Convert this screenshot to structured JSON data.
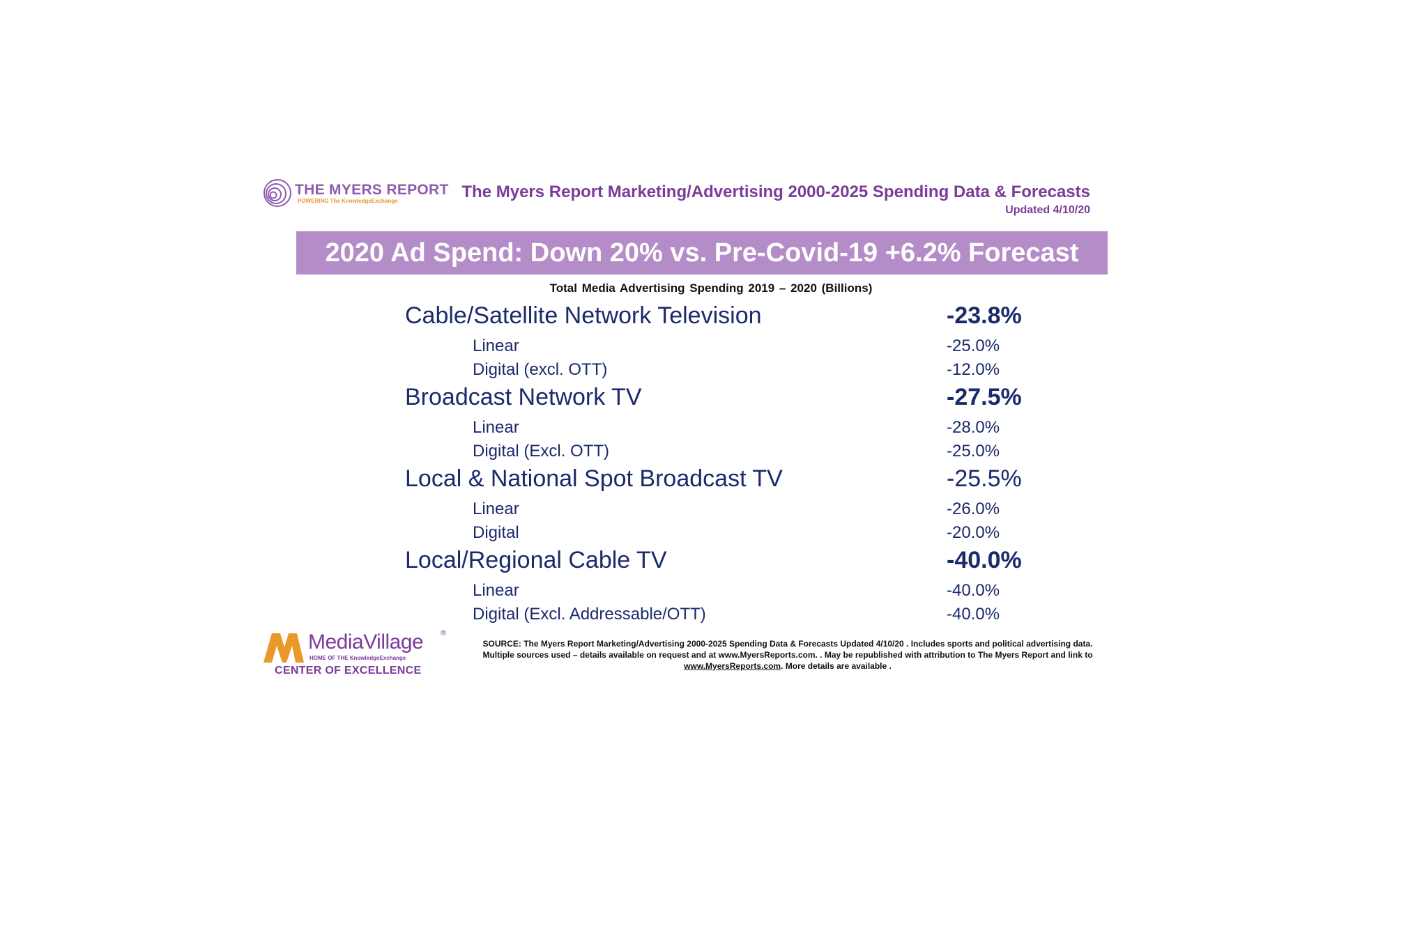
{
  "header": {
    "logo_name": "THE MYERS REPORT",
    "logo_tagline": "POWERING The KnowledgeExchange",
    "title": "The Myers Report Marketing/Advertising 2000-2025 Spending Data & Forecasts",
    "updated": "Updated 4/10/20"
  },
  "banner": "2020 Ad Spend: Down 20% vs. Pre-Covid-19 +6.2% Forecast",
  "table_subtitle": "Total Media Advertising Spending 2019 – 2020 (Billions)",
  "rows": [
    {
      "label": "Cable/Satellite Network Television",
      "value": "-23.8%"
    },
    {
      "label": "Linear",
      "value": "-25.0%"
    },
    {
      "label": "Digital (excl. OTT)",
      "value": "-12.0%"
    },
    {
      "label": "Broadcast Network TV",
      "value": "-27.5%"
    },
    {
      "label": "Linear",
      "value": "-28.0%"
    },
    {
      "label": "Digital (Excl. OTT)",
      "value": "-25.0%"
    },
    {
      "label": "Local & National Spot Broadcast TV",
      "value": "-25.5%"
    },
    {
      "label": "Linear",
      "value": "-26.0%"
    },
    {
      "label": "Digital",
      "value": "-20.0%"
    },
    {
      "label": "Local/Regional Cable TV",
      "value": "-40.0%"
    },
    {
      "label": "Linear",
      "value": "-40.0%"
    },
    {
      "label": "Digital (Excl. Addressable/OTT)",
      "value": "-40.0%"
    }
  ],
  "footer": {
    "mv_name": "MediaVillage",
    "mv_reg": "®",
    "mv_tagline": "HOME OF THE KnowledgeExchange",
    "mv_center": "CENTER OF EXCELLENCE",
    "source_line1": "SOURCE: The Myers Report Marketing/Advertising 2000-2025 Spending Data & Forecasts Updated 4/10/20 . Includes sports and political advertising data.",
    "source_line2": "Multiple sources used – details available on request and at www.MyersReports.com. . May be republished with attribution to The Myers Report and link to",
    "source_link": "www.MyersReports.com",
    "source_line3_tail": ". More details are available ."
  },
  "colors": {
    "purple": "#7b3b9a",
    "banner": "#b48cc8",
    "navy": "#1b2a6b",
    "orange": "#e9982a"
  }
}
